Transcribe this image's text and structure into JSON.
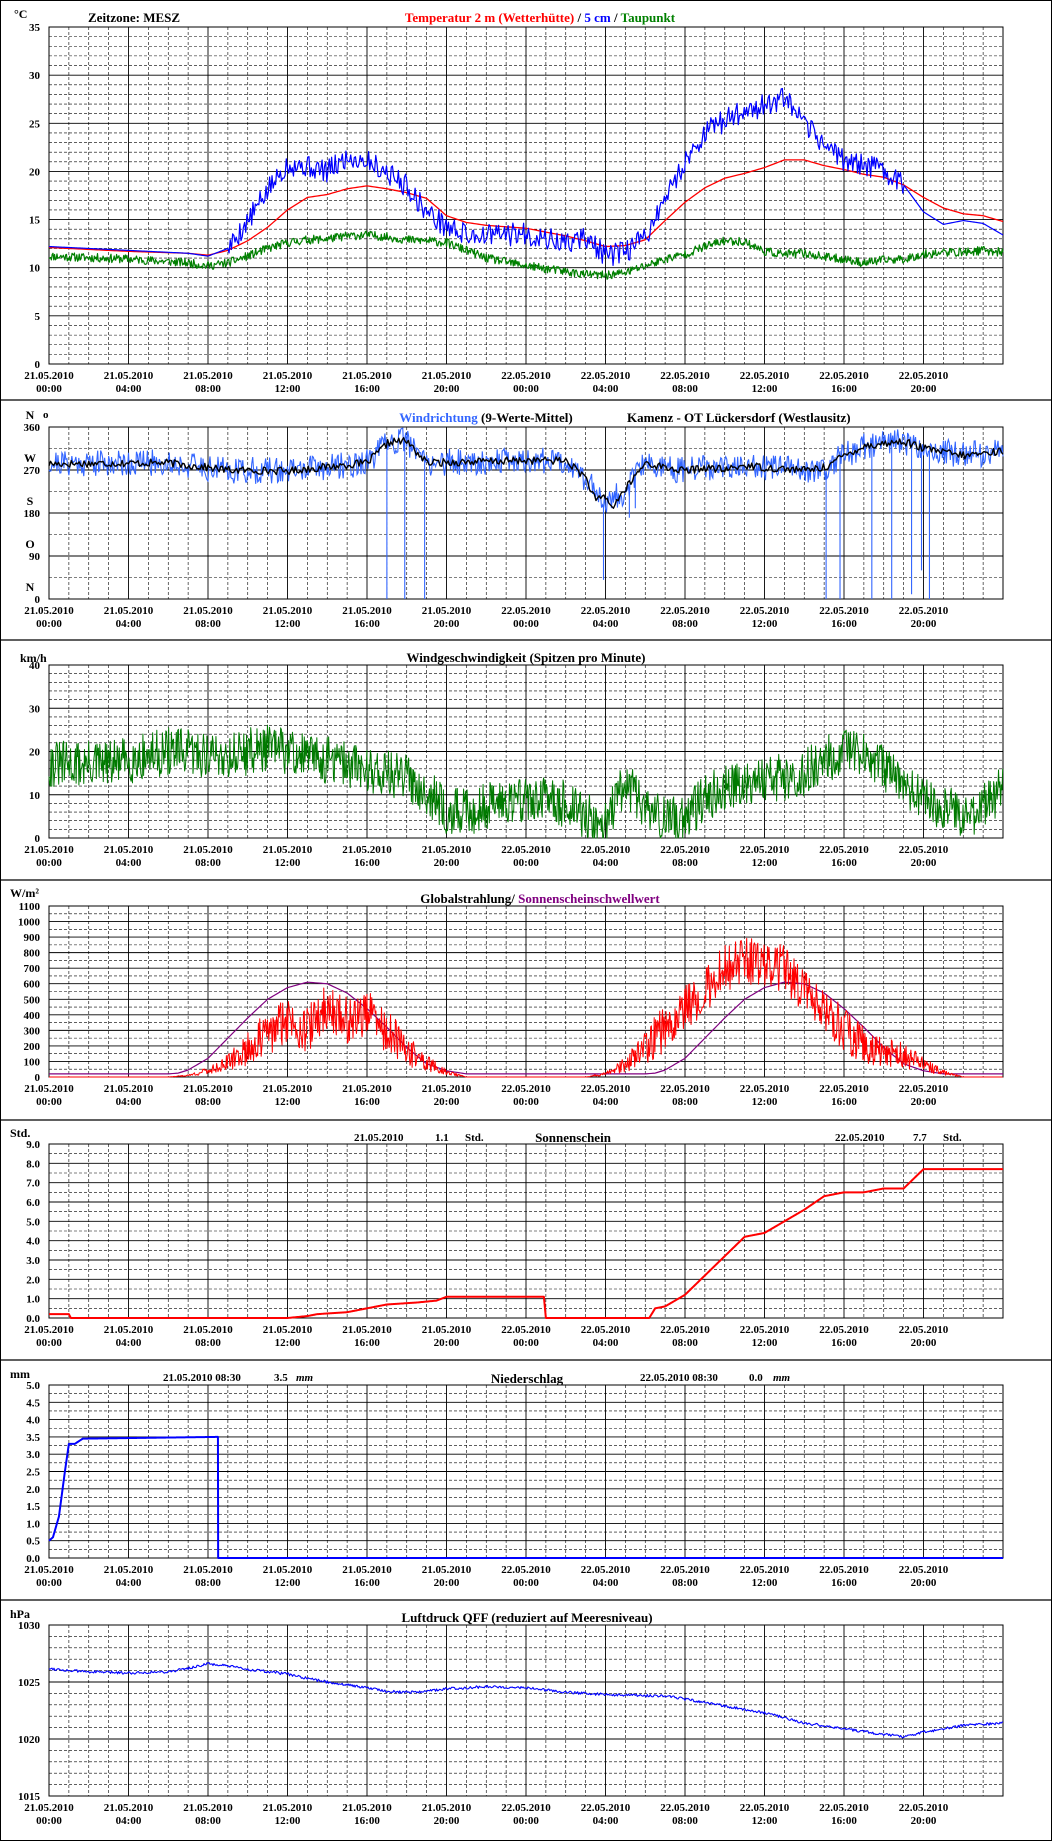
{
  "colors": {
    "red": "#ff0000",
    "blue": "#0000ff",
    "green": "#008000",
    "darkgreen": "#007a00",
    "lightblue": "#3366ff",
    "black": "#000000",
    "purple": "#800080"
  },
  "x_ticks": [
    [
      "21.05.2010",
      "00:00"
    ],
    [
      "21.05.2010",
      "04:00"
    ],
    [
      "21.05.2010",
      "08:00"
    ],
    [
      "21.05.2010",
      "12:00"
    ],
    [
      "21.05.2010",
      "16:00"
    ],
    [
      "21.05.2010",
      "20:00"
    ],
    [
      "22.05.2010",
      "00:00"
    ],
    [
      "22.05.2010",
      "04:00"
    ],
    [
      "22.05.2010",
      "08:00"
    ],
    [
      "22.05.2010",
      "12:00"
    ],
    [
      "22.05.2010",
      "16:00"
    ],
    [
      "22.05.2010",
      "20:00"
    ]
  ],
  "chart_data": [
    {
      "type": "line",
      "unit": "°C",
      "zone_label": "Zeitzone: MESZ",
      "title_parts": [
        {
          "text": "Temperatur 2 m (Wetterhütte)",
          "color": "#ff0000"
        },
        {
          "text": " / ",
          "color": "#000000"
        },
        {
          "text": "5 cm",
          "color": "#0000ff"
        },
        {
          "text": " / ",
          "color": "#000000"
        },
        {
          "text": "Taupunkt",
          "color": "#008000"
        }
      ],
      "ylim": [
        0,
        35
      ],
      "yticks": [
        0,
        5,
        10,
        15,
        20,
        25,
        30,
        35
      ],
      "grid": true,
      "series": [
        {
          "name": "Temperatur 2 m (Wetterhütte)",
          "color": "#ff0000",
          "x": [
            0,
            4,
            7,
            8,
            9,
            10,
            11,
            12,
            13,
            14,
            15,
            16,
            17,
            18,
            19,
            20,
            21,
            22,
            24,
            26,
            27,
            28,
            29,
            30,
            31,
            32,
            33,
            34,
            35,
            36,
            37,
            38,
            39,
            40,
            41,
            42,
            43,
            44,
            45,
            46,
            47,
            48
          ],
          "y": [
            12.1,
            11.7,
            11.5,
            11.3,
            11.8,
            12.8,
            14.2,
            16.0,
            17.3,
            17.6,
            18.2,
            18.5,
            18.2,
            17.8,
            17.2,
            15.4,
            14.7,
            14.4,
            14.1,
            13.3,
            12.8,
            12.2,
            12.3,
            12.9,
            14.9,
            16.8,
            18.3,
            19.3,
            19.8,
            20.4,
            21.2,
            21.2,
            20.6,
            20.2,
            19.7,
            19.4,
            18.6,
            17.3,
            16.2,
            15.6,
            15.4,
            14.8
          ]
        },
        {
          "name": "5 cm",
          "color": "#0000ff",
          "x": [
            0,
            4,
            7,
            8,
            9,
            10,
            11,
            12,
            13,
            14,
            15,
            16,
            17,
            18,
            19,
            20,
            21,
            22,
            24,
            26,
            27,
            28,
            29,
            30,
            31,
            32,
            33,
            34,
            35,
            36,
            37,
            38,
            39,
            40,
            41,
            42,
            43,
            44,
            45,
            46,
            47,
            48
          ],
          "y": [
            12.2,
            11.8,
            11.5,
            11.2,
            12.0,
            14.8,
            18.0,
            20.8,
            20.5,
            20.0,
            21.4,
            21.2,
            19.9,
            18.5,
            15.8,
            14.3,
            13.4,
            13.4,
            13.5,
            12.5,
            13.2,
            11.2,
            11.6,
            13.2,
            17.2,
            21.0,
            24.0,
            25.3,
            26.4,
            26.8,
            27.6,
            24.8,
            22.9,
            21.2,
            20.6,
            20.2,
            18.6,
            15.8,
            14.5,
            14.9,
            14.6,
            13.4
          ],
          "noise": 1.2,
          "noise_start": 9,
          "noise_end": 43
        },
        {
          "name": "Taupunkt",
          "color": "#008000",
          "x": [
            0,
            4,
            7,
            8,
            9,
            10,
            11,
            12,
            13,
            14,
            15,
            16,
            17,
            18,
            19,
            20,
            21,
            22,
            24,
            26,
            27,
            28,
            29,
            30,
            31,
            32,
            33,
            34,
            35,
            36,
            37,
            38,
            39,
            40,
            41,
            42,
            43,
            44,
            45,
            46,
            47,
            48
          ],
          "y": [
            11.2,
            10.9,
            10.5,
            10.2,
            10.5,
            11.2,
            12.0,
            12.6,
            12.9,
            13.0,
            13.3,
            13.4,
            13.2,
            12.9,
            12.8,
            12.6,
            11.8,
            11.0,
            10.2,
            9.6,
            9.3,
            9.2,
            9.5,
            10.2,
            10.9,
            11.4,
            12.2,
            12.8,
            12.7,
            11.7,
            11.4,
            11.5,
            11.1,
            10.9,
            10.5,
            10.8,
            10.9,
            11.4,
            11.6,
            11.6,
            11.8,
            11.6
          ],
          "noise": 0.45,
          "noise_start": 0,
          "noise_end": 48
        }
      ]
    },
    {
      "type": "line",
      "unit": "N",
      "title_parts": [
        {
          "text": "Windrichtung",
          "color": "#3366ff"
        },
        {
          "text": " (9-Werte-Mittel)",
          "color": "#000000"
        }
      ],
      "station": "Kamenz - OT Lückersdorf (Westlausitz)",
      "ylim": [
        0,
        360
      ],
      "yticks": [
        0,
        90,
        180,
        270,
        360
      ],
      "direction_labels": [
        "N",
        "O",
        "S",
        "W",
        "N"
      ],
      "grid": true,
      "series": [
        {
          "name": "Windrichtung",
          "color": "#3366ff",
          "x": [
            0,
            6,
            9,
            12,
            16,
            16.9,
            17,
            17.3,
            18,
            19,
            24,
            26,
            27,
            28,
            29,
            30,
            31,
            32,
            33,
            34,
            35,
            36,
            38,
            39,
            40,
            41,
            42,
            43,
            44,
            46,
            47,
            48
          ],
          "y": [
            285,
            285,
            270,
            268,
            285,
            320,
            325,
            330,
            330,
            285,
            290,
            290,
            250,
            205,
            225,
            285,
            275,
            268,
            275,
            270,
            280,
            275,
            270,
            275,
            300,
            320,
            325,
            330,
            315,
            300,
            305,
            310
          ],
          "noise": 28,
          "spikes": [
            [
              17.0,
              0
            ],
            [
              17.9,
              0
            ],
            [
              18.9,
              0
            ],
            [
              27.9,
              40
            ],
            [
              29.2,
              170
            ],
            [
              29.5,
              190
            ],
            [
              39.1,
              0
            ],
            [
              39.8,
              0
            ],
            [
              41.4,
              0
            ],
            [
              42.4,
              0
            ],
            [
              43.4,
              10
            ],
            [
              43.9,
              60
            ],
            [
              44.3,
              0
            ]
          ]
        },
        {
          "name": "9-Werte-Mittel",
          "color": "#000000",
          "x": [
            0,
            6,
            9,
            12,
            16,
            16.9,
            17,
            17.3,
            18,
            19,
            24,
            26,
            27,
            27.5,
            28,
            28.3,
            29,
            30,
            31,
            32,
            33,
            34,
            35,
            36,
            38,
            39,
            40,
            41,
            42,
            43,
            44,
            46,
            47,
            48
          ],
          "y": [
            283,
            285,
            270,
            268,
            285,
            320,
            325,
            330,
            330,
            285,
            290,
            290,
            255,
            205,
            215,
            190,
            230,
            285,
            275,
            268,
            275,
            270,
            280,
            275,
            270,
            275,
            300,
            320,
            325,
            330,
            315,
            300,
            305,
            310
          ],
          "noise": 8
        }
      ]
    },
    {
      "type": "line",
      "unit": "km/h",
      "title": "Windgeschwindigkeit (Spitzen pro Minute)",
      "ylim": [
        0,
        40
      ],
      "yticks": [
        0,
        10,
        20,
        30,
        40
      ],
      "grid": true,
      "series": [
        {
          "name": "Windgeschwindigkeit",
          "color": "#007a00",
          "x": [
            0,
            3,
            6,
            9,
            11,
            12,
            13,
            14,
            16,
            18,
            19,
            20,
            21,
            23,
            24,
            26,
            27,
            28,
            29,
            30,
            31,
            32,
            33,
            34,
            35,
            36,
            37,
            38,
            39,
            40,
            41,
            42,
            43,
            44,
            45,
            46,
            47,
            48
          ],
          "y": [
            17,
            17,
            20,
            19,
            21,
            20,
            19,
            18,
            16,
            14,
            11,
            6,
            6,
            9,
            9,
            8,
            5,
            3,
            13,
            7,
            4,
            5,
            9,
            12,
            13,
            14,
            14,
            15,
            18,
            20,
            19,
            16,
            12,
            9,
            7,
            5,
            7,
            12
          ],
          "noise": 5.5,
          "max": 35
        }
      ]
    },
    {
      "type": "line",
      "unit": "W/m²",
      "title_parts": [
        {
          "text": "Globalstrahlung/",
          "color": "#000000"
        },
        {
          "text": " Sonnenscheinschwellwert",
          "color": "#800080"
        }
      ],
      "ylim": [
        0,
        1100
      ],
      "yticks": [
        0,
        100,
        200,
        300,
        400,
        500,
        600,
        700,
        800,
        900,
        1000,
        1100
      ],
      "grid": true,
      "series": [
        {
          "name": "Globalstrahlung",
          "color": "#ff0000",
          "x": [
            0,
            6,
            7,
            8,
            9,
            10,
            11,
            12,
            13,
            14,
            15,
            16,
            17,
            18,
            19,
            20,
            21,
            27,
            28,
            29,
            30,
            31,
            32,
            33,
            34,
            35,
            36,
            37,
            38,
            39,
            40,
            41,
            42,
            43,
            44,
            45,
            46,
            48
          ],
          "y": [
            0,
            0,
            10,
            40,
            90,
            180,
            270,
            380,
            300,
            450,
            360,
            420,
            280,
            170,
            90,
            30,
            0,
            0,
            20,
            80,
            180,
            320,
            450,
            560,
            700,
            750,
            720,
            700,
            560,
            420,
            300,
            200,
            170,
            140,
            80,
            30,
            0,
            0
          ],
          "noise": 150
        },
        {
          "name": "Sonnenscheinschwellwert",
          "color": "#800080",
          "x": [
            0,
            6,
            6.5,
            7,
            8,
            9,
            10,
            11,
            12,
            13,
            14,
            15,
            16,
            17,
            18,
            19,
            20,
            21,
            30,
            30.5,
            31,
            32,
            33,
            34,
            35,
            36,
            37,
            38,
            39,
            40,
            41,
            42,
            43,
            44,
            45,
            46,
            48
          ],
          "y": [
            20,
            20,
            25,
            45,
            120,
            250,
            380,
            500,
            575,
            610,
            600,
            540,
            440,
            320,
            190,
            85,
            40,
            20,
            20,
            25,
            45,
            120,
            250,
            380,
            500,
            575,
            610,
            600,
            540,
            440,
            320,
            190,
            85,
            40,
            20,
            20,
            20
          ]
        }
      ]
    },
    {
      "type": "line",
      "unit": "Std.",
      "title": "Sonnenschein",
      "annotations": [
        {
          "date": "21.05.2010",
          "value": "1.1",
          "unit": "Std."
        },
        {
          "date": "22.05.2010",
          "value": "7.7",
          "unit": "Std."
        }
      ],
      "ylim": [
        0,
        9
      ],
      "yticks": [
        0,
        1,
        2,
        3,
        4,
        5,
        6,
        7,
        8,
        9
      ],
      "grid": true,
      "series": [
        {
          "name": "Sonnenschein",
          "color": "#ff0000",
          "x": [
            0,
            1,
            1.1,
            12,
            13,
            13.5,
            15,
            16.5,
            17,
            18.5,
            19.5,
            20,
            24.9,
            25,
            30.2,
            30.5,
            31,
            32,
            33,
            34,
            35,
            36,
            37,
            38,
            39,
            40,
            41,
            42,
            43,
            44,
            46,
            48
          ],
          "y": [
            0.2,
            0.2,
            0,
            0,
            0.1,
            0.2,
            0.3,
            0.6,
            0.7,
            0.8,
            0.9,
            1.1,
            1.1,
            0,
            0,
            0.5,
            0.6,
            1.2,
            2.2,
            3.2,
            4.2,
            4.4,
            5.0,
            5.6,
            6.3,
            6.5,
            6.5,
            6.7,
            6.7,
            7.7,
            7.7,
            7.7
          ]
        }
      ]
    },
    {
      "type": "line",
      "unit": "mm",
      "title": "Niederschlag",
      "annotations": [
        {
          "date": "21.05.2010 08:30",
          "value": "3.5",
          "unit": "mm"
        },
        {
          "date": "22.05.2010 08:30",
          "value": "0.0",
          "unit": "mm"
        }
      ],
      "ylim": [
        0,
        5
      ],
      "yticks": [
        0,
        0.5,
        1,
        1.5,
        2,
        2.5,
        3,
        3.5,
        4,
        4.5,
        5
      ],
      "grid": true,
      "series": [
        {
          "name": "Niederschlag",
          "color": "#0000ff",
          "x": [
            0,
            0.2,
            0.5,
            0.8,
            1.0,
            1.3,
            1.7,
            8.49,
            8.5,
            8.51,
            48
          ],
          "y": [
            0.5,
            0.6,
            1.2,
            2.5,
            3.3,
            3.3,
            3.45,
            3.5,
            3.5,
            0.0,
            0.0
          ]
        }
      ]
    },
    {
      "type": "line",
      "unit": "hPa",
      "title": "Luftdruck QFF (reduziert auf Meeresniveau)",
      "ylim": [
        1015,
        1030
      ],
      "yticks": [
        1015,
        1020,
        1025,
        1030
      ],
      "grid": true,
      "series": [
        {
          "name": "Luftdruck QFF",
          "color": "#0000ff",
          "x": [
            0,
            1,
            2,
            4,
            6,
            7,
            8,
            9,
            10,
            12,
            13,
            14,
            16,
            17,
            18,
            19,
            20,
            22,
            24,
            26,
            28,
            30,
            31,
            32,
            34,
            36,
            38,
            40,
            42,
            43,
            44,
            46,
            48
          ],
          "y": [
            1026.2,
            1026.0,
            1025.9,
            1025.8,
            1025.9,
            1026.2,
            1026.6,
            1026.4,
            1026.1,
            1025.7,
            1025.3,
            1025.0,
            1024.5,
            1024.2,
            1024.1,
            1024.2,
            1024.4,
            1024.6,
            1024.5,
            1024.1,
            1023.9,
            1023.8,
            1023.8,
            1023.5,
            1022.9,
            1022.3,
            1021.4,
            1020.9,
            1020.4,
            1020.2,
            1020.6,
            1021.2,
            1021.4
          ]
        }
      ]
    }
  ]
}
